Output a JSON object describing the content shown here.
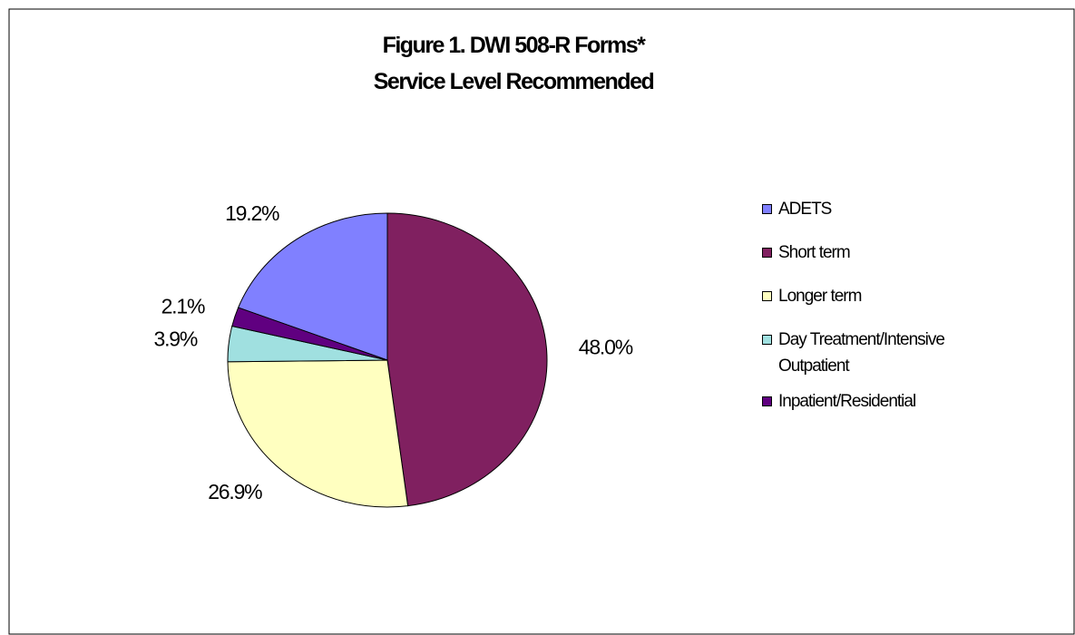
{
  "chart_data": {
    "type": "pie",
    "title": "Figure 1. DWI 508-R Forms*",
    "subtitle": "Service Level Recommended",
    "categories": [
      "ADETS",
      "Short term",
      "Longer term",
      "Day Treatment/Intensive Outpatient",
      "Inpatient/Residential"
    ],
    "values": [
      19.2,
      48.0,
      26.9,
      3.9,
      2.1
    ],
    "value_labels": [
      "19.2%",
      "48.0%",
      "26.9%",
      "3.9%",
      "2.1%"
    ],
    "colors": [
      "#8080ff",
      "#802060",
      "#ffffc0",
      "#a0e0e0",
      "#600080"
    ],
    "legend": "right"
  }
}
